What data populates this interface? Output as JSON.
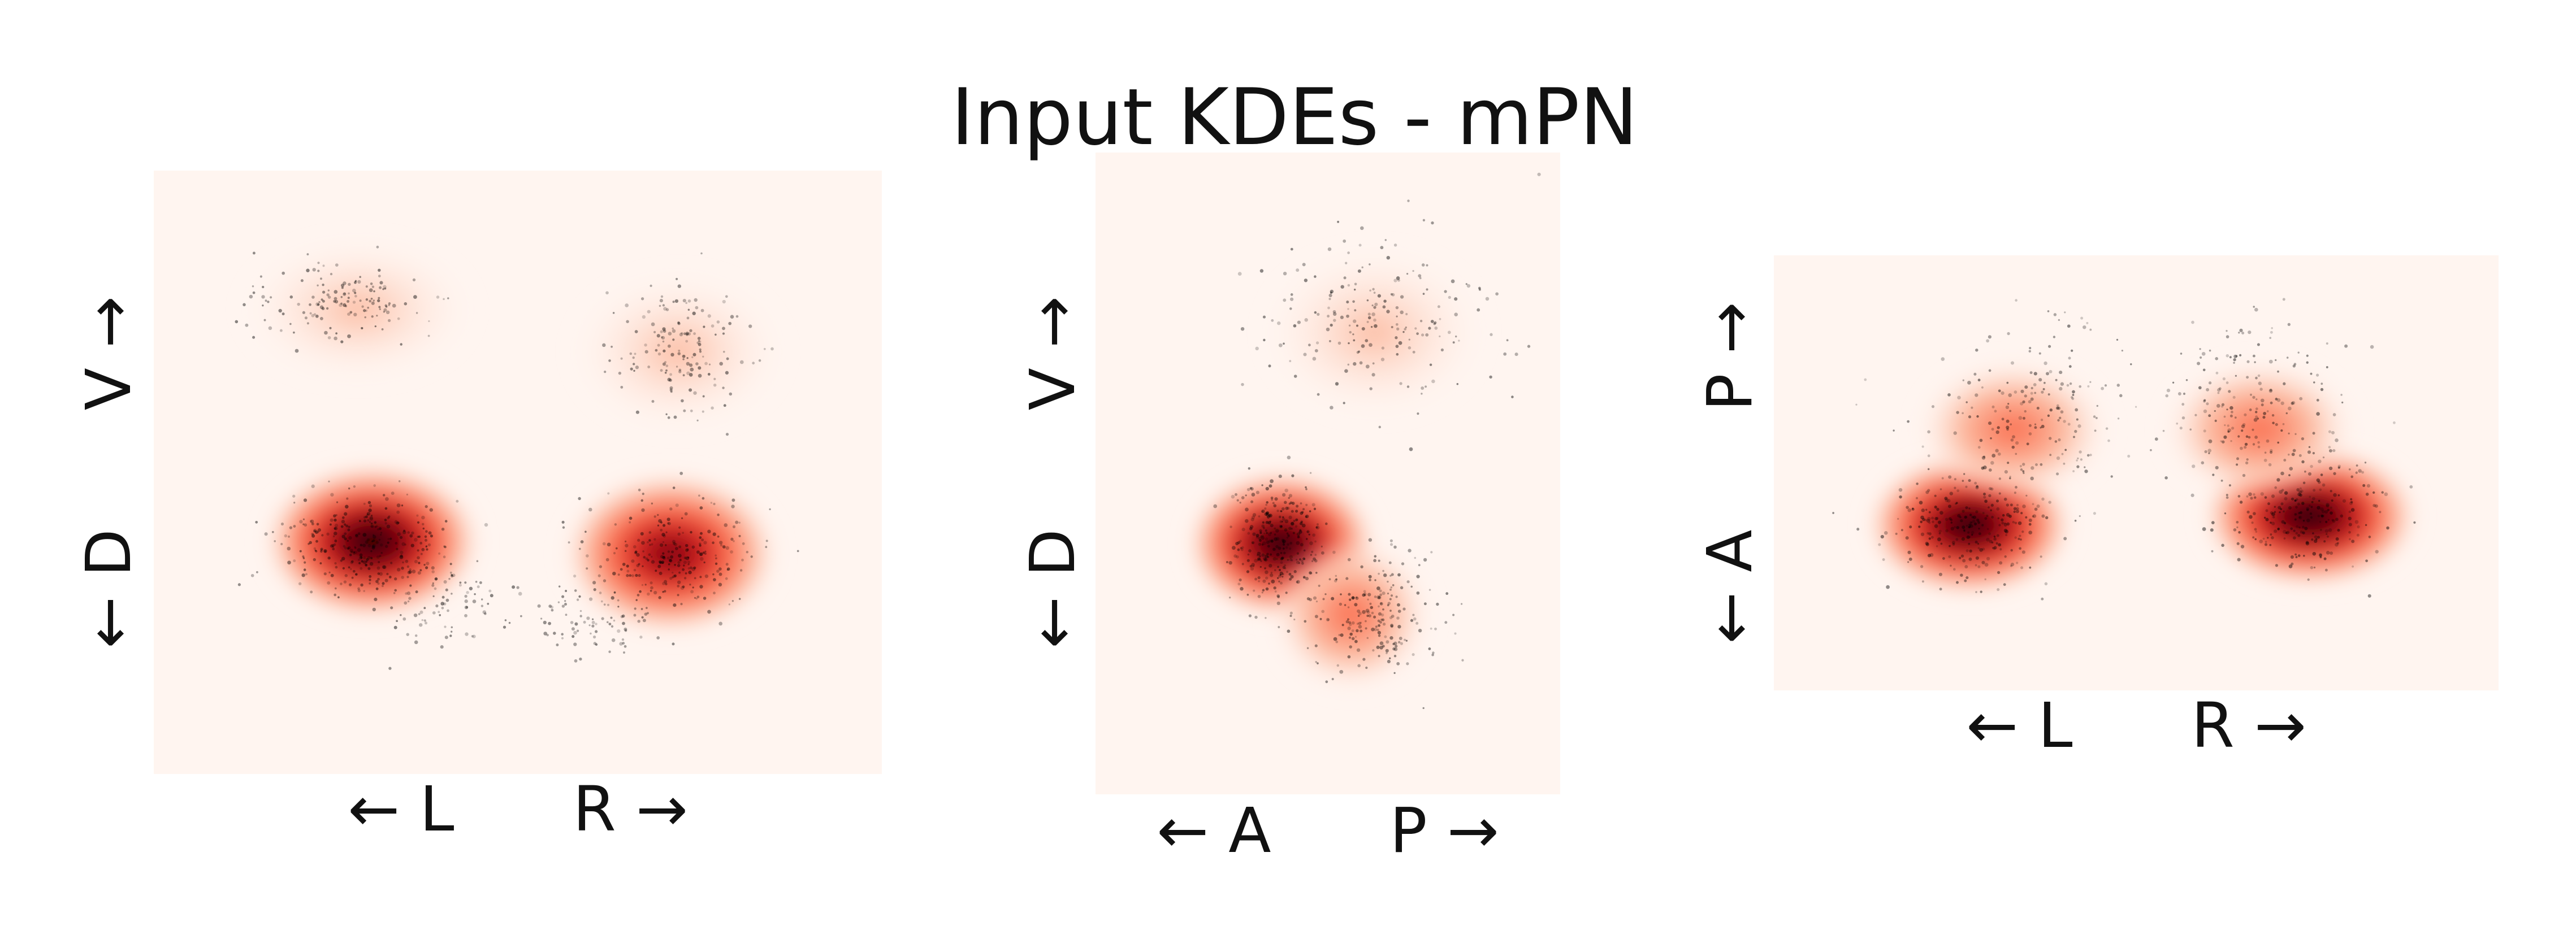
{
  "chart_data": {
    "title": "Input KDEs - mPN",
    "type": "heatmap",
    "colormap": {
      "name": "Reds",
      "stops": [
        "#fff5f0",
        "#fcbba1",
        "#fb6a4a",
        "#cb181d",
        "#67000d",
        "#1a0000"
      ]
    },
    "point_color": "#000000",
    "panels": [
      {
        "view": "frontal",
        "xlabel": "← L      R →",
        "ylabel": "← D      V →",
        "density_blobs": [
          {
            "cx": 0.3,
            "cy": 0.615,
            "rx": 0.11,
            "ry": 0.095,
            "peak": 1.0
          },
          {
            "cx": 0.71,
            "cy": 0.635,
            "rx": 0.11,
            "ry": 0.1,
            "peak": 0.85
          },
          {
            "cx": 0.28,
            "cy": 0.23,
            "rx": 0.12,
            "ry": 0.09,
            "peak": 0.05
          },
          {
            "cx": 0.72,
            "cy": 0.3,
            "rx": 0.11,
            "ry": 0.1,
            "peak": 0.05
          }
        ],
        "point_clusters": [
          {
            "cx": 0.29,
            "cy": 0.62,
            "sx": 0.06,
            "sy": 0.045,
            "n": 320
          },
          {
            "cx": 0.4,
            "cy": 0.72,
            "sx": 0.05,
            "sy": 0.035,
            "n": 90
          },
          {
            "cx": 0.71,
            "cy": 0.64,
            "sx": 0.06,
            "sy": 0.05,
            "n": 260
          },
          {
            "cx": 0.61,
            "cy": 0.74,
            "sx": 0.05,
            "sy": 0.035,
            "n": 80
          },
          {
            "cx": 0.26,
            "cy": 0.22,
            "sx": 0.06,
            "sy": 0.035,
            "n": 150
          },
          {
            "cx": 0.72,
            "cy": 0.3,
            "sx": 0.045,
            "sy": 0.055,
            "n": 160
          }
        ]
      },
      {
        "view": "lateral",
        "xlabel": "← A      P →",
        "ylabel": "← D      V →",
        "density_blobs": [
          {
            "cx": 0.4,
            "cy": 0.61,
            "rx": 0.15,
            "ry": 0.085,
            "peak": 1.0
          },
          {
            "cx": 0.55,
            "cy": 0.72,
            "rx": 0.13,
            "ry": 0.09,
            "peak": 0.35
          },
          {
            "cx": 0.6,
            "cy": 0.28,
            "rx": 0.18,
            "ry": 0.1,
            "peak": 0.04
          }
        ],
        "point_clusters": [
          {
            "cx": 0.39,
            "cy": 0.61,
            "sx": 0.05,
            "sy": 0.045,
            "n": 300
          },
          {
            "cx": 0.6,
            "cy": 0.72,
            "sx": 0.08,
            "sy": 0.05,
            "n": 220
          },
          {
            "cx": 0.62,
            "cy": 0.25,
            "sx": 0.14,
            "sy": 0.07,
            "n": 200
          }
        ]
      },
      {
        "view": "dorsal",
        "xlabel": "← L      R →",
        "ylabel": "← A      P →",
        "density_blobs": [
          {
            "cx": 0.27,
            "cy": 0.62,
            "rx": 0.105,
            "ry": 0.12,
            "peak": 1.0
          },
          {
            "cx": 0.74,
            "cy": 0.6,
            "rx": 0.11,
            "ry": 0.12,
            "peak": 0.95
          },
          {
            "cx": 0.33,
            "cy": 0.4,
            "rx": 0.1,
            "ry": 0.12,
            "peak": 0.3
          },
          {
            "cx": 0.67,
            "cy": 0.4,
            "rx": 0.1,
            "ry": 0.12,
            "peak": 0.3
          }
        ],
        "point_clusters": [
          {
            "cx": 0.27,
            "cy": 0.62,
            "sx": 0.055,
            "sy": 0.06,
            "n": 260
          },
          {
            "cx": 0.36,
            "cy": 0.37,
            "sx": 0.07,
            "sy": 0.09,
            "n": 200
          },
          {
            "cx": 0.74,
            "cy": 0.6,
            "sx": 0.055,
            "sy": 0.06,
            "n": 240
          },
          {
            "cx": 0.66,
            "cy": 0.35,
            "sx": 0.06,
            "sy": 0.1,
            "n": 200
          }
        ]
      }
    ]
  }
}
